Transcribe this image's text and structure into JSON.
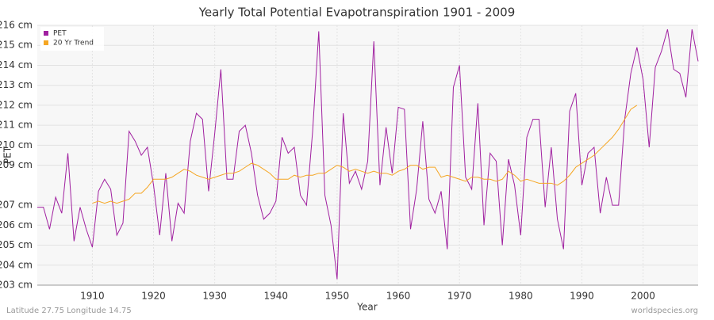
{
  "chart_data": {
    "type": "line",
    "title": "Yearly Total Potential Evapotranspiration 1901 - 2009",
    "x_label": "Year",
    "y_label": "PET",
    "x": [
      1901,
      1902,
      1903,
      1904,
      1905,
      1906,
      1907,
      1908,
      1909,
      1910,
      1911,
      1912,
      1913,
      1914,
      1915,
      1916,
      1917,
      1918,
      1919,
      1920,
      1921,
      1922,
      1923,
      1924,
      1925,
      1926,
      1927,
      1928,
      1929,
      1930,
      1931,
      1932,
      1933,
      1934,
      1935,
      1936,
      1937,
      1938,
      1939,
      1940,
      1941,
      1942,
      1943,
      1944,
      1945,
      1946,
      1947,
      1948,
      1949,
      1950,
      1951,
      1952,
      1953,
      1954,
      1955,
      1956,
      1957,
      1958,
      1959,
      1960,
      1961,
      1962,
      1963,
      1964,
      1965,
      1966,
      1967,
      1968,
      1969,
      1970,
      1971,
      1972,
      1973,
      1974,
      1975,
      1976,
      1977,
      1978,
      1979,
      1980,
      1981,
      1982,
      1983,
      1984,
      1985,
      1986,
      1987,
      1988,
      1989,
      1990,
      1991,
      1992,
      1993,
      1994,
      1995,
      1996,
      1997,
      1998,
      1999,
      2000,
      2001,
      2002,
      2003,
      2004,
      2005,
      2006,
      2007,
      2008,
      2009
    ],
    "series": [
      {
        "name": "PET",
        "color": "#a020a0",
        "values": [
          206.9,
          206.9,
          205.8,
          207.4,
          206.6,
          209.6,
          205.2,
          206.9,
          205.8,
          204.9,
          207.7,
          208.3,
          207.8,
          205.5,
          206.1,
          210.7,
          210.2,
          209.5,
          209.9,
          208.0,
          205.5,
          208.6,
          205.2,
          207.1,
          206.6,
          210.2,
          211.6,
          211.3,
          207.7,
          210.6,
          213.8,
          208.3,
          208.3,
          210.7,
          211.0,
          209.6,
          207.5,
          206.3,
          206.6,
          207.2,
          210.4,
          209.6,
          209.9,
          207.5,
          207.0,
          210.7,
          215.7,
          207.5,
          206.0,
          203.3,
          211.6,
          208.1,
          208.7,
          207.8,
          209.2,
          215.2,
          208.0,
          210.9,
          208.6,
          211.9,
          211.8,
          205.8,
          207.8,
          211.2,
          207.3,
          206.6,
          207.7,
          204.8,
          212.9,
          214.0,
          208.4,
          207.8,
          212.1,
          206.0,
          209.6,
          209.2,
          205.0,
          209.3,
          208.0,
          205.5,
          210.4,
          211.3,
          211.3,
          206.9,
          209.9,
          206.3,
          204.8,
          211.7,
          212.6,
          208.0,
          209.6,
          209.9,
          206.6,
          208.4,
          207.0,
          207.0,
          211.3,
          213.6,
          214.9,
          213.3,
          209.9,
          213.9,
          214.7,
          215.8,
          213.8,
          213.6,
          212.4,
          215.8,
          214.2
        ]
      },
      {
        "name": "20 Yr Trend",
        "color": "#f5a623",
        "values": [
          null,
          null,
          null,
          null,
          null,
          null,
          null,
          null,
          null,
          207.1,
          207.2,
          207.1,
          207.2,
          207.1,
          207.2,
          207.3,
          207.6,
          207.6,
          207.9,
          208.3,
          208.3,
          208.3,
          208.4,
          208.6,
          208.8,
          208.7,
          208.5,
          208.4,
          208.3,
          208.4,
          208.5,
          208.6,
          208.6,
          208.7,
          208.9,
          209.1,
          209.0,
          208.8,
          208.6,
          208.3,
          208.3,
          208.3,
          208.5,
          208.4,
          208.5,
          208.5,
          208.6,
          208.6,
          208.8,
          209.0,
          208.9,
          208.7,
          208.8,
          208.7,
          208.6,
          208.7,
          208.6,
          208.6,
          208.5,
          208.7,
          208.8,
          209.0,
          209.0,
          208.8,
          208.9,
          208.9,
          208.4,
          208.5,
          208.4,
          208.3,
          208.2,
          208.4,
          208.4,
          208.3,
          208.3,
          208.2,
          208.3,
          208.7,
          208.5,
          208.2,
          208.3,
          208.2,
          208.1,
          208.1,
          208.1,
          208.0,
          208.2,
          208.5,
          208.9,
          209.1,
          209.3,
          209.5,
          209.8,
          210.1,
          210.4,
          210.8,
          211.3,
          211.8,
          212.0,
          null,
          null,
          null,
          null,
          null,
          null,
          null,
          null,
          null,
          null
        ]
      }
    ],
    "xlim": [
      1901,
      2009
    ],
    "xticks": [
      1910,
      1920,
      1930,
      1940,
      1950,
      1960,
      1970,
      1980,
      1990,
      2000
    ],
    "ylim": [
      203,
      216
    ],
    "yticks": [
      {
        "value": 203,
        "label": "203 cm"
      },
      {
        "value": 204,
        "label": "204 cm"
      },
      {
        "value": 205,
        "label": "205 cm"
      },
      {
        "value": 206,
        "label": "206 cm"
      },
      {
        "value": 207,
        "label": "207 cm"
      },
      {
        "value": 209,
        "label": "209 cm"
      },
      {
        "value": 210,
        "label": "210 cm"
      },
      {
        "value": 211,
        "label": "211 cm"
      },
      {
        "value": 212,
        "label": "212 cm"
      },
      {
        "value": 213,
        "label": "213 cm"
      },
      {
        "value": 214,
        "label": "214 cm"
      },
      {
        "value": 215,
        "label": "215 cm"
      },
      {
        "value": 216,
        "label": "216 cm"
      }
    ],
    "grid": true,
    "legend": "top-left",
    "footer_left": "Latitude 27.75 Longitude 14.75",
    "footer_right": "worldspecies.org"
  }
}
